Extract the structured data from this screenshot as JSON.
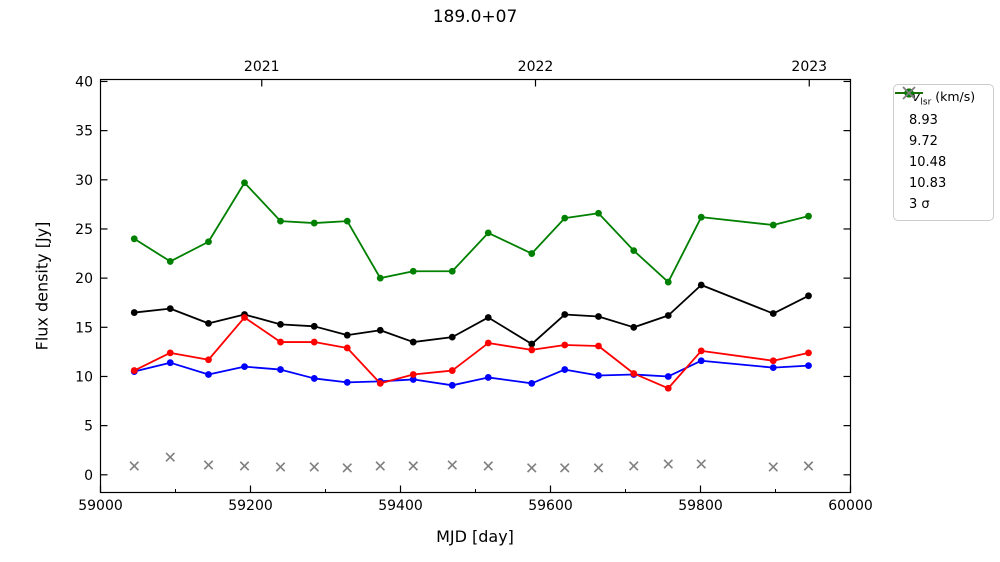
{
  "legend": {
    "title_var": "V",
    "title_sub": "lsr",
    "title_unit": " (km/s)",
    "entries": [
      {
        "label": "8.93",
        "color": "#000000",
        "marker": "line-circle"
      },
      {
        "label": "9.72",
        "color": "#0000ff",
        "marker": "line-circle"
      },
      {
        "label": "10.48",
        "color": "#ff0000",
        "marker": "line-circle"
      },
      {
        "label": "10.83",
        "color": "#008000",
        "marker": "line-circle"
      },
      {
        "label": "3 σ",
        "color": "#7f7f7f",
        "marker": "x",
        "italic_symbol": true
      }
    ]
  },
  "chart_data": {
    "type": "line",
    "title": "189.0+07",
    "xlabel": "MJD [day]",
    "ylabel": "Flux density [Jy]",
    "xlim": [
      59000,
      60000
    ],
    "ylim": [
      -1.8,
      40.2
    ],
    "xticks_major": [
      59000,
      59200,
      59400,
      59600,
      59800,
      60000
    ],
    "xticks_minor": [
      59100,
      59300,
      59500,
      59700,
      59900
    ],
    "yticks": [
      0,
      5,
      10,
      15,
      20,
      25,
      30,
      35,
      40
    ],
    "top_axis_ticks": [
      {
        "label": "2021",
        "mjd": 59215
      },
      {
        "label": "2022",
        "mjd": 59580
      },
      {
        "label": "2023",
        "mjd": 59945
      }
    ],
    "grid": false,
    "legend_position": "outside-upper-right",
    "x": [
      59045,
      59093,
      59144,
      59192,
      59240,
      59285,
      59329,
      59373,
      59417,
      59469,
      59517,
      59575,
      59619,
      59664,
      59711,
      59757,
      59801,
      59897,
      59944
    ],
    "series": [
      {
        "name": "8.93",
        "color": "#000000",
        "marker": "circle",
        "line": true,
        "values": [
          16.5,
          16.9,
          15.4,
          16.3,
          15.3,
          15.1,
          14.2,
          14.7,
          13.5,
          14.0,
          16.0,
          13.3,
          16.3,
          16.1,
          15.0,
          16.2,
          19.3,
          16.4,
          18.2
        ]
      },
      {
        "name": "9.72",
        "color": "#0000ff",
        "marker": "circle",
        "line": true,
        "values": [
          10.5,
          11.4,
          10.2,
          11.0,
          10.7,
          9.8,
          9.4,
          9.5,
          9.7,
          9.1,
          9.9,
          9.3,
          10.7,
          10.1,
          10.2,
          10.0,
          11.6,
          10.9,
          11.1
        ]
      },
      {
        "name": "10.48",
        "color": "#ff0000",
        "marker": "circle",
        "line": true,
        "values": [
          10.6,
          12.4,
          11.7,
          16.0,
          13.5,
          13.5,
          12.9,
          9.3,
          10.2,
          10.6,
          13.4,
          12.7,
          13.2,
          13.1,
          10.3,
          8.8,
          12.6,
          11.6,
          12.4
        ]
      },
      {
        "name": "10.83",
        "color": "#008000",
        "marker": "circle",
        "line": true,
        "values": [
          24.0,
          21.7,
          23.7,
          29.7,
          25.8,
          25.6,
          25.8,
          20.0,
          20.7,
          20.7,
          24.6,
          22.5,
          26.1,
          26.6,
          22.8,
          19.6,
          26.2,
          25.4,
          26.3
        ]
      },
      {
        "name": "3 σ",
        "color": "#7f7f7f",
        "marker": "x",
        "line": false,
        "values": [
          0.9,
          1.8,
          1.0,
          0.9,
          0.8,
          0.8,
          0.7,
          0.9,
          0.9,
          1.0,
          0.9,
          0.7,
          0.7,
          0.7,
          0.9,
          1.1,
          1.1,
          0.8,
          0.9
        ]
      }
    ]
  }
}
